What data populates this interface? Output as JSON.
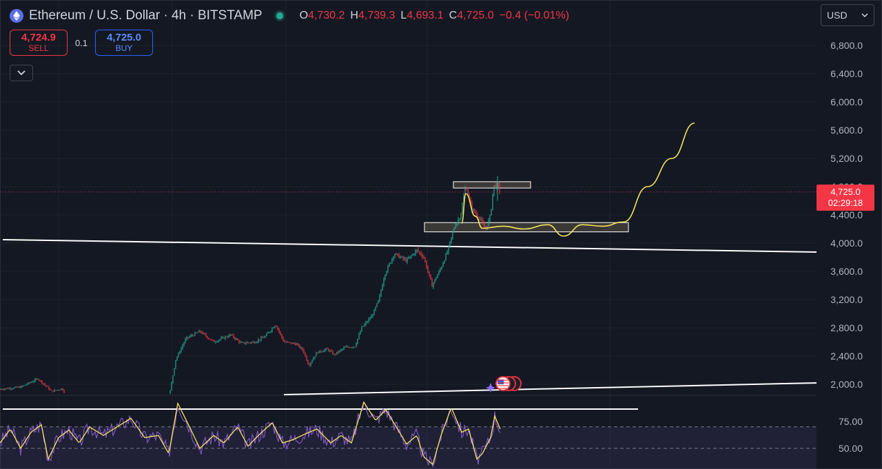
{
  "header": {
    "title": "Ethereum / U.S. Dollar · 4h · BITSTAMP",
    "symbol_icon": "ethereum-icon",
    "market_status_color": "#22ab94",
    "ohlc": {
      "o_key": "O",
      "o_val": "4,730.2",
      "h_key": "H",
      "h_val": "4,739.3",
      "l_key": "L",
      "l_val": "4,693.1",
      "c_key": "C",
      "c_val": "4,725.0",
      "change": "−0.4 (−0.01%)"
    }
  },
  "trade": {
    "sell_price": "4,724.9",
    "sell_label": "SELL",
    "quantity": "0.1",
    "buy_price": "4,725.0",
    "buy_label": "BUY"
  },
  "currency": {
    "label": "USD"
  },
  "last_price": {
    "price": "4,725.0",
    "countdown": "02:29:18"
  },
  "colors": {
    "background": "#141823",
    "up": "#22ab94",
    "down": "#f23645",
    "projection": "#f7e55a",
    "rsi": "#7e57c2",
    "rsi_ma": "#f7e55a",
    "trendline": "#ffffff"
  },
  "chart_data": [
    {
      "type": "candlestick",
      "interval": "4h",
      "y_ticks": [
        "6,800.0",
        "6,400.0",
        "6,000.0",
        "5,600.0",
        "5,200.0",
        "4,800.0",
        "4,400.0",
        "4,000.0",
        "3,600.0",
        "3,200.0",
        "2,800.0",
        "2,400.0",
        "2,000.0"
      ],
      "ylim": [
        1850,
        7050
      ],
      "grid": true,
      "price_path": [
        [
          0,
          1930
        ],
        [
          30,
          1960
        ],
        [
          55,
          2080
        ],
        [
          75,
          1900
        ],
        [
          90,
          1940
        ],
        [
          105,
          1700
        ],
        [
          150,
          1650
        ],
        [
          200,
          1700
        ],
        [
          245,
          1800
        ],
        [
          255,
          2350
        ],
        [
          270,
          2650
        ],
        [
          290,
          2750
        ],
        [
          310,
          2600
        ],
        [
          335,
          2700
        ],
        [
          350,
          2580
        ],
        [
          370,
          2600
        ],
        [
          385,
          2680
        ],
        [
          400,
          2850
        ],
        [
          412,
          2600
        ],
        [
          430,
          2570
        ],
        [
          440,
          2480
        ],
        [
          448,
          2270
        ],
        [
          460,
          2450
        ],
        [
          475,
          2500
        ],
        [
          485,
          2420
        ],
        [
          500,
          2520
        ],
        [
          515,
          2540
        ],
        [
          525,
          2800
        ],
        [
          540,
          2970
        ],
        [
          550,
          3200
        ],
        [
          558,
          3550
        ],
        [
          572,
          3850
        ],
        [
          590,
          3750
        ],
        [
          605,
          3900
        ],
        [
          615,
          3800
        ],
        [
          627,
          3400
        ],
        [
          640,
          3650
        ],
        [
          650,
          3900
        ],
        [
          660,
          4250
        ],
        [
          668,
          4380
        ],
        [
          676,
          4820
        ],
        [
          684,
          4500
        ],
        [
          690,
          4420
        ],
        [
          698,
          4330
        ],
        [
          704,
          4180
        ],
        [
          712,
          4400
        ],
        [
          716,
          4800
        ],
        [
          722,
          4830
        ],
        [
          726,
          4725
        ]
      ],
      "zones": [
        {
          "from_price": 4780,
          "to_price": 4870
        },
        {
          "from_price": 4160,
          "to_price": 4290
        }
      ],
      "projection_path": [
        [
          670,
          4280
        ],
        [
          676,
          4700
        ],
        [
          690,
          4380
        ],
        [
          700,
          4210
        ],
        [
          730,
          4240
        ],
        [
          760,
          4200
        ],
        [
          795,
          4260
        ],
        [
          818,
          4100
        ],
        [
          845,
          4260
        ],
        [
          875,
          4240
        ],
        [
          905,
          4300
        ],
        [
          940,
          4800
        ],
        [
          975,
          5200
        ],
        [
          1008,
          5700
        ]
      ]
    },
    {
      "type": "line",
      "indicator": "RSI",
      "y_ticks": [
        "75.00",
        "50.00"
      ],
      "levels": [
        70,
        50
      ],
      "ylim": [
        33,
        93
      ],
      "rsi_path": [
        [
          0,
          55
        ],
        [
          15,
          68
        ],
        [
          30,
          50
        ],
        [
          45,
          65
        ],
        [
          60,
          72
        ],
        [
          70,
          40
        ],
        [
          85,
          60
        ],
        [
          100,
          67
        ],
        [
          115,
          55
        ],
        [
          130,
          70
        ],
        [
          150,
          62
        ],
        [
          175,
          72
        ],
        [
          190,
          78
        ],
        [
          210,
          60
        ],
        [
          230,
          62
        ],
        [
          245,
          45
        ],
        [
          258,
          92
        ],
        [
          275,
          70
        ],
        [
          290,
          50
        ],
        [
          310,
          62
        ],
        [
          325,
          55
        ],
        [
          345,
          70
        ],
        [
          360,
          52
        ],
        [
          375,
          62
        ],
        [
          395,
          74
        ],
        [
          410,
          55
        ],
        [
          425,
          58
        ],
        [
          445,
          64
        ],
        [
          460,
          68
        ],
        [
          480,
          55
        ],
        [
          495,
          62
        ],
        [
          510,
          55
        ],
        [
          528,
          93
        ],
        [
          545,
          76
        ],
        [
          560,
          86
        ],
        [
          575,
          70
        ],
        [
          590,
          54
        ],
        [
          605,
          62
        ],
        [
          615,
          42
        ],
        [
          628,
          35
        ],
        [
          640,
          62
        ],
        [
          655,
          88
        ],
        [
          670,
          65
        ],
        [
          680,
          68
        ],
        [
          692,
          40
        ],
        [
          700,
          45
        ],
        [
          712,
          60
        ],
        [
          718,
          80
        ],
        [
          726,
          68
        ]
      ]
    }
  ]
}
